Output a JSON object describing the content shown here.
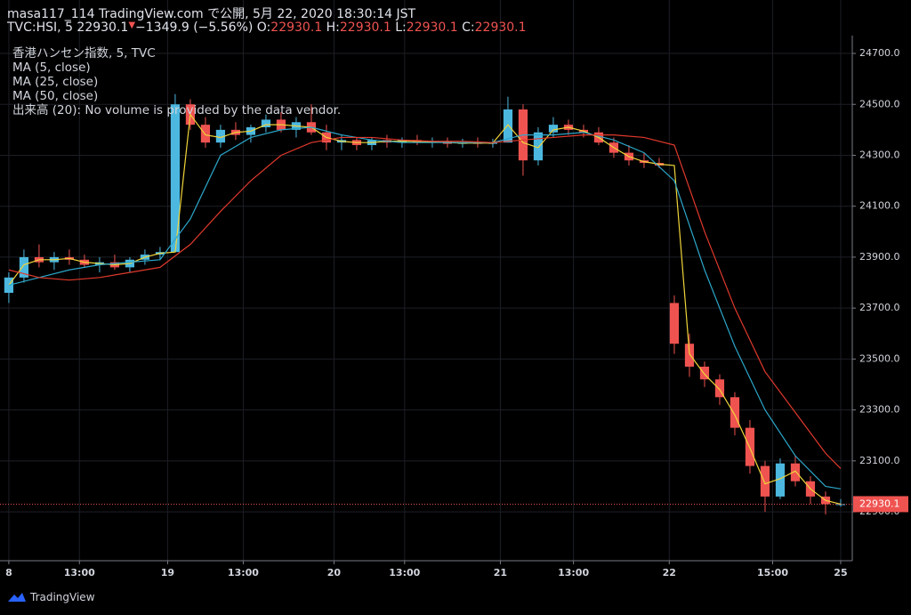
{
  "header": {
    "published": "masa117_114 TradingView.com で公開, 5月 22, 2020 18:30:14 JST",
    "symbol": "TVC:HSI, 5 22930.1",
    "change_arrow": "▼",
    "change": "−1349.9 (−5.56%)",
    "ohlc": [
      {
        "label": "O:",
        "value": "22930.1"
      },
      {
        "label": "H:",
        "value": "22930.1"
      },
      {
        "label": "L:",
        "value": "22930.1"
      },
      {
        "label": "C:",
        "value": "22930.1"
      }
    ]
  },
  "legend": [
    "香港ハンセン指数, 5, TVC",
    "MA (5, close)",
    "MA (25, close)",
    "MA (50, close)",
    "出来高 (20): No volume is provided by the data vendor."
  ],
  "footer": "TradingView",
  "chart_data": {
    "type": "candlestick",
    "x": [
      0,
      6,
      12,
      18,
      24,
      30,
      36,
      42,
      48,
      54,
      60,
      66,
      72,
      78,
      84,
      90,
      96,
      102,
      108,
      114,
      120,
      126,
      132,
      138,
      144,
      150,
      156,
      162,
      168,
      174,
      180,
      186,
      192,
      198,
      204,
      210,
      216,
      222,
      228,
      234,
      240,
      246,
      252,
      258,
      264,
      270,
      276,
      282,
      288,
      294,
      300,
      306,
      312,
      318,
      324,
      330
    ],
    "open": [
      23760,
      23820,
      23900,
      23880,
      23900,
      23890,
      23870,
      23880,
      23860,
      23890,
      23910,
      23920,
      24500,
      24420,
      24350,
      24400,
      24380,
      24410,
      24440,
      24400,
      24430,
      24390,
      24350,
      24360,
      24340,
      24360,
      24350,
      24360,
      24350,
      24355,
      24345,
      24350,
      24345,
      24350,
      24480,
      24280,
      24390,
      24420,
      24400,
      24390,
      24350,
      24310,
      24280,
      24270,
      23720,
      23560,
      23470,
      23420,
      23350,
      23230,
      23080,
      22960,
      23090,
      23020,
      22960,
      22930
    ],
    "high": [
      23840,
      23930,
      23950,
      23920,
      23930,
      23910,
      23900,
      23910,
      23900,
      23930,
      23940,
      24540,
      24520,
      24450,
      24420,
      24430,
      24420,
      24460,
      24470,
      24450,
      24500,
      24420,
      24380,
      24370,
      24370,
      24380,
      24370,
      24380,
      24370,
      24370,
      24365,
      24370,
      24365,
      24530,
      24500,
      24410,
      24450,
      24440,
      24420,
      24410,
      24370,
      24340,
      24310,
      24290,
      23750,
      23600,
      23490,
      23440,
      23370,
      23260,
      23100,
      23110,
      23120,
      23040,
      22980,
      22950
    ],
    "low": [
      23720,
      23800,
      23860,
      23850,
      23870,
      23860,
      23840,
      23850,
      23840,
      23870,
      23890,
      23920,
      24400,
      24330,
      24330,
      24360,
      24350,
      24390,
      24390,
      24370,
      24380,
      24320,
      24320,
      24320,
      24320,
      24330,
      24330,
      24340,
      24330,
      24330,
      24330,
      24330,
      24330,
      24350,
      24220,
      24260,
      24370,
      24380,
      24370,
      24340,
      24290,
      24260,
      24250,
      24250,
      23520,
      23430,
      23390,
      23320,
      23200,
      23050,
      22900,
      22950,
      23000,
      22930,
      22890,
      22920
    ],
    "close": [
      23820,
      23900,
      23880,
      23900,
      23890,
      23870,
      23880,
      23860,
      23890,
      23910,
      23920,
      24500,
      24420,
      24350,
      24400,
      24380,
      24410,
      24440,
      24400,
      24430,
      24390,
      24350,
      24360,
      24340,
      24360,
      24350,
      24360,
      24350,
      24355,
      24345,
      24350,
      24345,
      24350,
      24480,
      24280,
      24390,
      24420,
      24400,
      24390,
      24350,
      24310,
      24280,
      24270,
      24260,
      23560,
      23470,
      23420,
      23350,
      23230,
      23080,
      22960,
      23090,
      23020,
      22960,
      22930,
      22930
    ],
    "up_color": "#4cb8e0",
    "down_color": "#ef5350",
    "series": [
      {
        "name": "MA (5, close)",
        "color": "#f0d43a",
        "x": [
          0,
          6,
          12,
          18,
          24,
          30,
          36,
          42,
          48,
          54,
          60,
          66,
          72,
          78,
          84,
          90,
          96,
          102,
          108,
          114,
          120,
          126,
          132,
          138,
          144,
          150,
          156,
          162,
          168,
          174,
          180,
          186,
          192,
          198,
          204,
          210,
          216,
          222,
          228,
          234,
          240,
          246,
          252,
          258,
          264,
          270,
          276,
          282,
          288,
          294,
          300,
          306,
          312,
          318,
          324,
          330
        ],
        "values": [
          23790,
          23870,
          23890,
          23890,
          23895,
          23880,
          23875,
          23870,
          23875,
          23900,
          23915,
          23920,
          24460,
          24380,
          24370,
          24390,
          24395,
          24420,
          24420,
          24415,
          24410,
          24370,
          24355,
          24350,
          24350,
          24355,
          24355,
          24355,
          24352,
          24350,
          24348,
          24348,
          24348,
          24420,
          24350,
          24330,
          24400,
          24410,
          24395,
          24370,
          24330,
          24295,
          24275,
          24265,
          24260,
          23520,
          23440,
          23380,
          23280,
          23150,
          23010,
          23030,
          23060,
          22990,
          22945,
          22930
        ]
      },
      {
        "name": "MA (25, close)",
        "color": "#2ca6c9",
        "x": [
          0,
          12,
          24,
          36,
          48,
          60,
          72,
          84,
          96,
          108,
          120,
          132,
          144,
          156,
          168,
          180,
          192,
          204,
          216,
          228,
          240,
          252,
          264,
          276,
          288,
          300,
          312,
          324,
          330
        ],
        "values": [
          23790,
          23820,
          23850,
          23870,
          23880,
          23890,
          24050,
          24300,
          24370,
          24400,
          24410,
          24380,
          24360,
          24350,
          24350,
          24350,
          24350,
          24380,
          24380,
          24390,
          24360,
          24310,
          24200,
          23850,
          23550,
          23300,
          23120,
          23000,
          22990
        ]
      },
      {
        "name": "MA (50, close)",
        "color": "#e0392c",
        "x": [
          0,
          12,
          24,
          36,
          48,
          60,
          72,
          84,
          96,
          108,
          120,
          132,
          144,
          156,
          168,
          180,
          192,
          204,
          216,
          228,
          240,
          252,
          264,
          276,
          288,
          300,
          312,
          324,
          330
        ],
        "values": [
          23850,
          23820,
          23810,
          23820,
          23840,
          23860,
          23950,
          24080,
          24200,
          24300,
          24350,
          24370,
          24370,
          24360,
          24355,
          24355,
          24350,
          24360,
          24370,
          24380,
          24380,
          24370,
          24340,
          24000,
          23700,
          23450,
          23290,
          23130,
          23070
        ]
      }
    ],
    "last_price": 22930.1,
    "last_price_color": "#ef5350",
    "xlim": [
      -3.5,
      334.6
    ],
    "ylim": [
      22708,
      24770
    ],
    "xticks": [
      {
        "value": 0,
        "label": "8"
      },
      {
        "value": 28,
        "label": "13:00"
      },
      {
        "value": 63,
        "label": "19"
      },
      {
        "value": 93,
        "label": "13:00"
      },
      {
        "value": 129,
        "label": "20"
      },
      {
        "value": 157,
        "label": "13:00"
      },
      {
        "value": 195,
        "label": "21"
      },
      {
        "value": 224,
        "label": "13:00"
      },
      {
        "value": 262,
        "label": "22"
      },
      {
        "value": 303,
        "label": "15:00"
      },
      {
        "value": 330,
        "label": "25"
      }
    ],
    "yticks": [
      {
        "value": 22900,
        "label": "22900.0"
      },
      {
        "value": 23100,
        "label": "23100.0"
      },
      {
        "value": 23300,
        "label": "23300.0"
      },
      {
        "value": 23500,
        "label": "23500.0"
      },
      {
        "value": 23700,
        "label": "23700.0"
      },
      {
        "value": 23900,
        "label": "23900.0"
      },
      {
        "value": 24100,
        "label": "24100.0"
      },
      {
        "value": 24300,
        "label": "24300.0"
      },
      {
        "value": 24500,
        "label": "24500.0"
      },
      {
        "value": 24700,
        "label": "24700.0"
      }
    ],
    "grid": true
  }
}
